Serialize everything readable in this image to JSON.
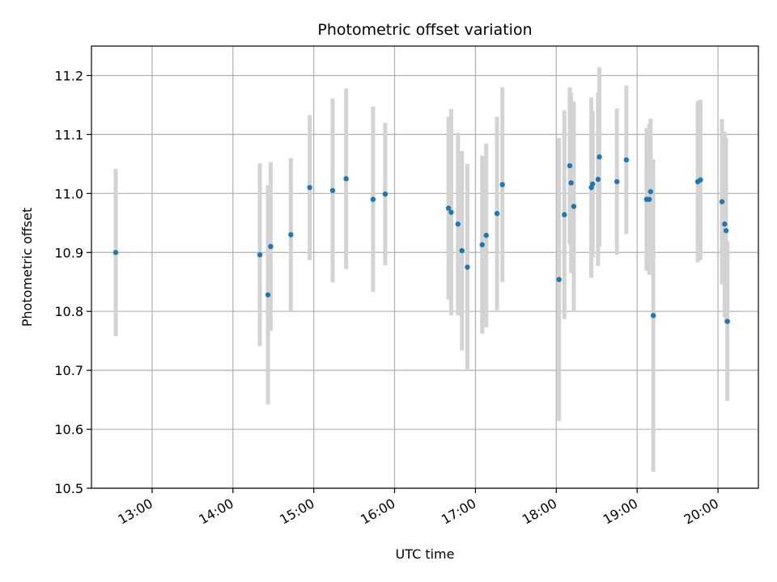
{
  "chart_data": {
    "type": "scatter",
    "title": "Photometric offset variation",
    "xlabel": "UTC time",
    "ylabel": "Photometric offset",
    "xlim": [
      "12:15",
      "20:30"
    ],
    "ylim": [
      10.5,
      11.25
    ],
    "x_ticks": [
      "13:00",
      "14:00",
      "15:00",
      "16:00",
      "17:00",
      "18:00",
      "19:00",
      "20:00"
    ],
    "y_ticks": [
      10.5,
      10.6,
      10.7,
      10.8,
      10.9,
      11.0,
      11.1,
      11.2
    ],
    "grid": true,
    "colors": {
      "points": "#1f77b4",
      "error_bars": "#d3d3d3",
      "grid": "#b0b0b0"
    },
    "points": [
      {
        "t": "12:33",
        "y": 10.9,
        "err": 0.142
      },
      {
        "t": "14:20",
        "y": 10.896,
        "err": 0.155
      },
      {
        "t": "14:26",
        "y": 10.828,
        "err": 0.186
      },
      {
        "t": "14:28",
        "y": 10.91,
        "err": 0.143
      },
      {
        "t": "14:43",
        "y": 10.93,
        "err": 0.13
      },
      {
        "t": "14:57",
        "y": 11.01,
        "err": 0.123
      },
      {
        "t": "15:14",
        "y": 11.005,
        "err": 0.156
      },
      {
        "t": "15:24",
        "y": 11.025,
        "err": 0.153
      },
      {
        "t": "15:44",
        "y": 10.99,
        "err": 0.157
      },
      {
        "t": "15:53",
        "y": 10.999,
        "err": 0.121
      },
      {
        "t": "16:40",
        "y": 10.975,
        "err": 0.155
      },
      {
        "t": "16:42",
        "y": 10.968,
        "err": 0.175
      },
      {
        "t": "16:47",
        "y": 10.948,
        "err": 0.155
      },
      {
        "t": "16:50",
        "y": 10.903,
        "err": 0.169
      },
      {
        "t": "16:54",
        "y": 10.875,
        "err": 0.175
      },
      {
        "t": "17:05",
        "y": 10.913,
        "err": 0.151
      },
      {
        "t": "17:08",
        "y": 10.929,
        "err": 0.156
      },
      {
        "t": "17:16",
        "y": 10.966,
        "err": 0.164
      },
      {
        "t": "17:20",
        "y": 11.015,
        "err": 0.165
      },
      {
        "t": "18:02",
        "y": 10.854,
        "err": 0.24
      },
      {
        "t": "18:06",
        "y": 10.964,
        "err": 0.177
      },
      {
        "t": "18:10",
        "y": 11.047,
        "err": 0.133
      },
      {
        "t": "18:11",
        "y": 11.018,
        "err": 0.153
      },
      {
        "t": "18:13",
        "y": 10.978,
        "err": 0.178
      },
      {
        "t": "18:26",
        "y": 11.01,
        "err": 0.153
      },
      {
        "t": "18:27",
        "y": 11.016,
        "err": 0.124
      },
      {
        "t": "18:31",
        "y": 11.024,
        "err": 0.147
      },
      {
        "t": "18:32",
        "y": 11.062,
        "err": 0.152
      },
      {
        "t": "18:45",
        "y": 11.02,
        "err": 0.124
      },
      {
        "t": "18:52",
        "y": 11.057,
        "err": 0.126
      },
      {
        "t": "19:07",
        "y": 10.99,
        "err": 0.121
      },
      {
        "t": "19:09",
        "y": 10.99,
        "err": 0.128
      },
      {
        "t": "19:10",
        "y": 11.003,
        "err": 0.124
      },
      {
        "t": "19:12",
        "y": 10.793,
        "err": 0.265
      },
      {
        "t": "19:45",
        "y": 11.02,
        "err": 0.137
      },
      {
        "t": "19:47",
        "y": 11.023,
        "err": 0.136
      },
      {
        "t": "20:03",
        "y": 10.986,
        "err": 0.14
      },
      {
        "t": "20:05",
        "y": 10.948,
        "err": 0.157
      },
      {
        "t": "20:06",
        "y": 10.937,
        "err": 0.157
      },
      {
        "t": "20:07",
        "y": 10.783,
        "err": 0.135
      }
    ]
  }
}
